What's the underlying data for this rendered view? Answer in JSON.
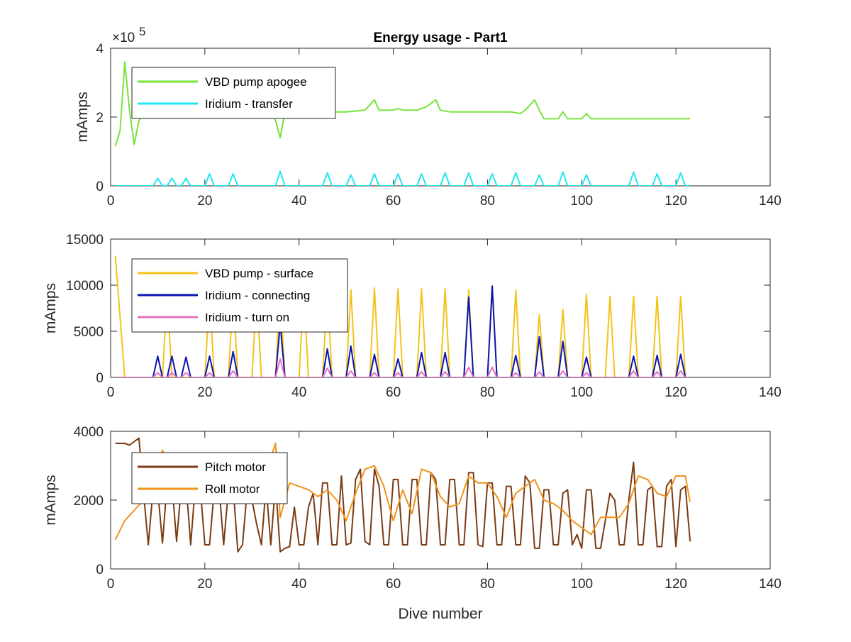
{
  "chart_data": [
    {
      "type": "line",
      "title": "Energy usage - Part1",
      "ylabel": "mAmps",
      "xlabel": "",
      "xlim": [
        0,
        140
      ],
      "ylim": [
        0,
        4
      ],
      "y_exponent_label": "×10",
      "y_exponent_power": "5",
      "xticks": [
        0,
        20,
        40,
        60,
        80,
        100,
        120,
        140
      ],
      "yticks": [
        0,
        2,
        4
      ],
      "legend_location": "top-left",
      "series": [
        {
          "name": "VBD pump apogee",
          "color": "#77e33b",
          "x": [
            1,
            2,
            3,
            4,
            5,
            6,
            7,
            8,
            10,
            15,
            20,
            25,
            30,
            34,
            35,
            36,
            37,
            40,
            45,
            50,
            54,
            56,
            57,
            60,
            61,
            62,
            65,
            67,
            69,
            70,
            72,
            75,
            80,
            83,
            85,
            87,
            88,
            90,
            91,
            92,
            95,
            96,
            97,
            100,
            101,
            102,
            105,
            110,
            115,
            120,
            123
          ],
          "y": [
            1.15,
            1.6,
            3.6,
            2.2,
            1.2,
            1.9,
            2.1,
            2.15,
            2.15,
            2.15,
            2.15,
            2.15,
            2.15,
            2.15,
            1.9,
            1.4,
            2.15,
            2.15,
            2.15,
            2.15,
            2.2,
            2.5,
            2.2,
            2.2,
            2.25,
            2.2,
            2.2,
            2.3,
            2.5,
            2.2,
            2.15,
            2.15,
            2.15,
            2.15,
            2.15,
            2.1,
            2.2,
            2.5,
            2.2,
            1.95,
            1.95,
            2.15,
            1.95,
            1.95,
            2.1,
            1.95,
            1.95,
            1.95,
            1.95,
            1.95,
            1.95
          ]
        },
        {
          "name": "Iridium - transfer",
          "color": "#22e6f0",
          "x": [
            1,
            9,
            10,
            11,
            12,
            13,
            14,
            15,
            16,
            17,
            20,
            21,
            22,
            25,
            26,
            27,
            35,
            36,
            37,
            45,
            46,
            47,
            50,
            51,
            52,
            55,
            56,
            57,
            60,
            61,
            62,
            65,
            66,
            67,
            70,
            71,
            72,
            75,
            76,
            77,
            80,
            81,
            82,
            85,
            86,
            87,
            90,
            91,
            92,
            95,
            96,
            97,
            100,
            101,
            102,
            110,
            111,
            112,
            115,
            116,
            117,
            120,
            121,
            122,
            123
          ],
          "y": [
            0,
            0,
            0.22,
            0,
            0,
            0.22,
            0,
            0,
            0.22,
            0,
            0,
            0.35,
            0,
            0,
            0.35,
            0,
            0,
            0.42,
            0,
            0,
            0.38,
            0,
            0,
            0.32,
            0,
            0,
            0.35,
            0,
            0,
            0.35,
            0,
            0,
            0.35,
            0,
            0,
            0.38,
            0,
            0,
            0.38,
            0,
            0,
            0.35,
            0,
            0,
            0.38,
            0,
            0,
            0.32,
            0,
            0,
            0.4,
            0,
            0,
            0.32,
            0,
            0,
            0.4,
            0,
            0,
            0.35,
            0,
            0,
            0.38,
            0,
            0
          ]
        }
      ]
    },
    {
      "type": "line",
      "title": "",
      "ylabel": "mAmps",
      "xlabel": "",
      "xlim": [
        0,
        140
      ],
      "ylim": [
        0,
        15000
      ],
      "xticks": [
        0,
        20,
        40,
        60,
        80,
        100,
        120,
        140
      ],
      "yticks": [
        0,
        5000,
        10000,
        15000
      ],
      "legend_location": "top-left",
      "series": [
        {
          "name": "VBD pump - surface",
          "color": "#f2c31b",
          "x": [
            1,
            3,
            4,
            5,
            6,
            7,
            8,
            9,
            10,
            11,
            12,
            13,
            14,
            15,
            16,
            17,
            18,
            20,
            21,
            22,
            23,
            25,
            26,
            27,
            28,
            30,
            31,
            32,
            33,
            35,
            36,
            37,
            38,
            40,
            41,
            42,
            43,
            45,
            46,
            47,
            48,
            50,
            51,
            52,
            53,
            55,
            56,
            57,
            58,
            60,
            61,
            62,
            63,
            65,
            66,
            67,
            68,
            70,
            71,
            72,
            73,
            75,
            76,
            77,
            78,
            80,
            81,
            82,
            83,
            85,
            86,
            87,
            88,
            90,
            91,
            92,
            93,
            95,
            96,
            97,
            98,
            100,
            101,
            102,
            103,
            105,
            106,
            107,
            108,
            110,
            111,
            112,
            113,
            115,
            116,
            117,
            118,
            120,
            121,
            122,
            123
          ],
          "y": [
            13200,
            0,
            0,
            0,
            0,
            0,
            0,
            0,
            0,
            0,
            9000,
            0,
            0,
            0,
            0,
            0,
            0,
            0,
            9200,
            0,
            0,
            0,
            9200,
            0,
            0,
            0,
            9300,
            0,
            0,
            0,
            9300,
            0,
            0,
            0,
            9400,
            0,
            0,
            0,
            9500,
            0,
            0,
            0,
            9500,
            0,
            0,
            0,
            9700,
            0,
            0,
            0,
            9600,
            0,
            0,
            0,
            9600,
            0,
            0,
            0,
            9600,
            0,
            0,
            0,
            9500,
            0,
            0,
            0,
            9500,
            0,
            0,
            0,
            9400,
            0,
            0,
            0,
            6800,
            0,
            0,
            0,
            7400,
            0,
            0,
            0,
            9000,
            0,
            0,
            0,
            8800,
            0,
            0,
            0,
            8800,
            0,
            0,
            0,
            8800,
            0,
            0,
            0,
            8800,
            0,
            0
          ]
        },
        {
          "name": "Iridium - connecting",
          "color": "#0a14b4",
          "x": [
            1,
            9,
            10,
            11,
            12,
            13,
            14,
            15,
            16,
            17,
            20,
            21,
            22,
            25,
            26,
            27,
            35,
            36,
            37,
            45,
            46,
            47,
            50,
            51,
            52,
            55,
            56,
            57,
            60,
            61,
            62,
            65,
            66,
            67,
            70,
            71,
            72,
            75,
            76,
            77,
            80,
            81,
            82,
            85,
            86,
            87,
            90,
            91,
            92,
            95,
            96,
            97,
            100,
            101,
            102,
            110,
            111,
            112,
            115,
            116,
            117,
            120,
            121,
            122,
            123
          ],
          "y": [
            0,
            0,
            2300,
            0,
            0,
            2300,
            0,
            0,
            2200,
            0,
            0,
            2300,
            0,
            0,
            2800,
            0,
            0,
            5800,
            0,
            0,
            3100,
            0,
            0,
            3400,
            0,
            0,
            2500,
            0,
            0,
            2000,
            0,
            0,
            2700,
            0,
            0,
            2700,
            0,
            0,
            8700,
            0,
            0,
            9900,
            0,
            0,
            2400,
            0,
            0,
            4400,
            0,
            0,
            3900,
            0,
            0,
            2200,
            0,
            0,
            2300,
            0,
            0,
            2400,
            0,
            0,
            2500,
            0,
            0
          ]
        },
        {
          "name": "Iridium - turn on",
          "color": "#e86fc0",
          "x": [
            1,
            9,
            10,
            11,
            12,
            13,
            14,
            15,
            16,
            17,
            20,
            21,
            22,
            25,
            26,
            27,
            35,
            36,
            37,
            45,
            46,
            47,
            50,
            51,
            52,
            55,
            56,
            57,
            60,
            61,
            62,
            65,
            66,
            67,
            70,
            71,
            72,
            75,
            76,
            77,
            80,
            81,
            82,
            85,
            86,
            87,
            90,
            91,
            92,
            95,
            96,
            97,
            100,
            101,
            102,
            110,
            111,
            112,
            115,
            116,
            117,
            120,
            121,
            122,
            123
          ],
          "y": [
            0,
            0,
            500,
            0,
            0,
            500,
            0,
            0,
            500,
            0,
            0,
            500,
            0,
            0,
            700,
            0,
            0,
            2000,
            0,
            0,
            1000,
            0,
            0,
            700,
            0,
            0,
            500,
            0,
            0,
            500,
            0,
            0,
            600,
            0,
            0,
            600,
            0,
            0,
            1100,
            0,
            0,
            1100,
            0,
            0,
            500,
            0,
            0,
            600,
            0,
            0,
            700,
            0,
            0,
            500,
            0,
            0,
            700,
            0,
            0,
            600,
            0,
            0,
            700,
            0,
            0
          ]
        }
      ]
    },
    {
      "type": "line",
      "title": "",
      "ylabel": "mAmps",
      "xlabel": "Dive number",
      "xlim": [
        0,
        140
      ],
      "ylim": [
        0,
        4000
      ],
      "xticks": [
        0,
        20,
        40,
        60,
        80,
        100,
        120,
        140
      ],
      "yticks": [
        0,
        2000,
        4000
      ],
      "legend_location": "top-left",
      "series": [
        {
          "name": "Pitch motor",
          "color": "#7a3b12",
          "x": [
            1,
            2,
            3,
            4,
            5,
            6,
            7,
            8,
            9,
            10,
            11,
            12,
            13,
            14,
            15,
            16,
            17,
            18,
            19,
            20,
            21,
            22,
            23,
            24,
            25,
            26,
            27,
            28,
            29,
            30,
            31,
            32,
            33,
            34,
            35,
            36,
            37,
            38,
            39,
            40,
            41,
            42,
            43,
            44,
            45,
            46,
            47,
            48,
            49,
            50,
            51,
            52,
            53,
            54,
            55,
            56,
            57,
            58,
            59,
            60,
            61,
            62,
            63,
            64,
            65,
            66,
            67,
            68,
            69,
            70,
            71,
            72,
            73,
            74,
            75,
            76,
            77,
            78,
            79,
            80,
            81,
            82,
            83,
            84,
            85,
            86,
            87,
            88,
            89,
            90,
            91,
            92,
            93,
            94,
            95,
            96,
            97,
            98,
            99,
            100,
            101,
            102,
            103,
            104,
            105,
            106,
            107,
            108,
            109,
            110,
            111,
            112,
            113,
            114,
            115,
            116,
            117,
            118,
            119,
            120,
            121,
            122,
            123
          ],
          "y": [
            3650,
            3650,
            3650,
            3600,
            3700,
            3800,
            2200,
            700,
            2300,
            2300,
            750,
            2500,
            2500,
            800,
            2400,
            2500,
            700,
            2500,
            2400,
            700,
            700,
            2300,
            2400,
            700,
            2300,
            2400,
            500,
            700,
            2300,
            2000,
            1300,
            700,
            2400,
            700,
            2500,
            500,
            600,
            650,
            1800,
            700,
            700,
            1800,
            2200,
            700,
            2500,
            2500,
            700,
            700,
            2700,
            700,
            750,
            2600,
            2900,
            800,
            700,
            2900,
            2400,
            700,
            700,
            2600,
            2600,
            700,
            700,
            2600,
            2600,
            700,
            700,
            2800,
            2600,
            700,
            700,
            2600,
            2600,
            700,
            700,
            2800,
            2800,
            700,
            650,
            2500,
            2500,
            700,
            700,
            2400,
            2400,
            700,
            700,
            2700,
            2500,
            600,
            600,
            2300,
            2300,
            700,
            700,
            2200,
            2300,
            700,
            1000,
            600,
            2300,
            2300,
            600,
            600,
            1400,
            2200,
            2000,
            700,
            700,
            2000,
            3100,
            700,
            700,
            2300,
            2400,
            650,
            650,
            2400,
            2600,
            650,
            2300,
            2400,
            800
          ],
          "y_note": ""
        },
        {
          "name": "Roll motor",
          "color": "#f0921c",
          "x": [
            1,
            3,
            5,
            7,
            9,
            11,
            13,
            15,
            17,
            19,
            21,
            23,
            25,
            27,
            29,
            31,
            33,
            35,
            36,
            38,
            40,
            42,
            44,
            46,
            48,
            50,
            52,
            54,
            56,
            58,
            60,
            62,
            64,
            66,
            68,
            70,
            72,
            74,
            76,
            78,
            80,
            82,
            84,
            86,
            88,
            90,
            92,
            94,
            96,
            98,
            100,
            102,
            104,
            106,
            108,
            110,
            112,
            114,
            116,
            118,
            120,
            122,
            123
          ],
          "y": [
            850,
            1400,
            1700,
            2000,
            2800,
            3450,
            2900,
            3000,
            2500,
            2900,
            3000,
            2600,
            2500,
            3000,
            2900,
            3000,
            2800,
            3650,
            1500,
            2500,
            2400,
            2300,
            2100,
            2300,
            2000,
            1400,
            2200,
            2900,
            3000,
            2400,
            1400,
            2300,
            1600,
            2900,
            2800,
            2100,
            1800,
            1900,
            2700,
            2500,
            2500,
            2100,
            1500,
            2200,
            2400,
            2600,
            2000,
            1900,
            1700,
            1400,
            1200,
            1000,
            1500,
            1500,
            1500,
            1900,
            2700,
            2600,
            2200,
            2100,
            2700,
            2700,
            1950
          ]
        }
      ]
    }
  ]
}
